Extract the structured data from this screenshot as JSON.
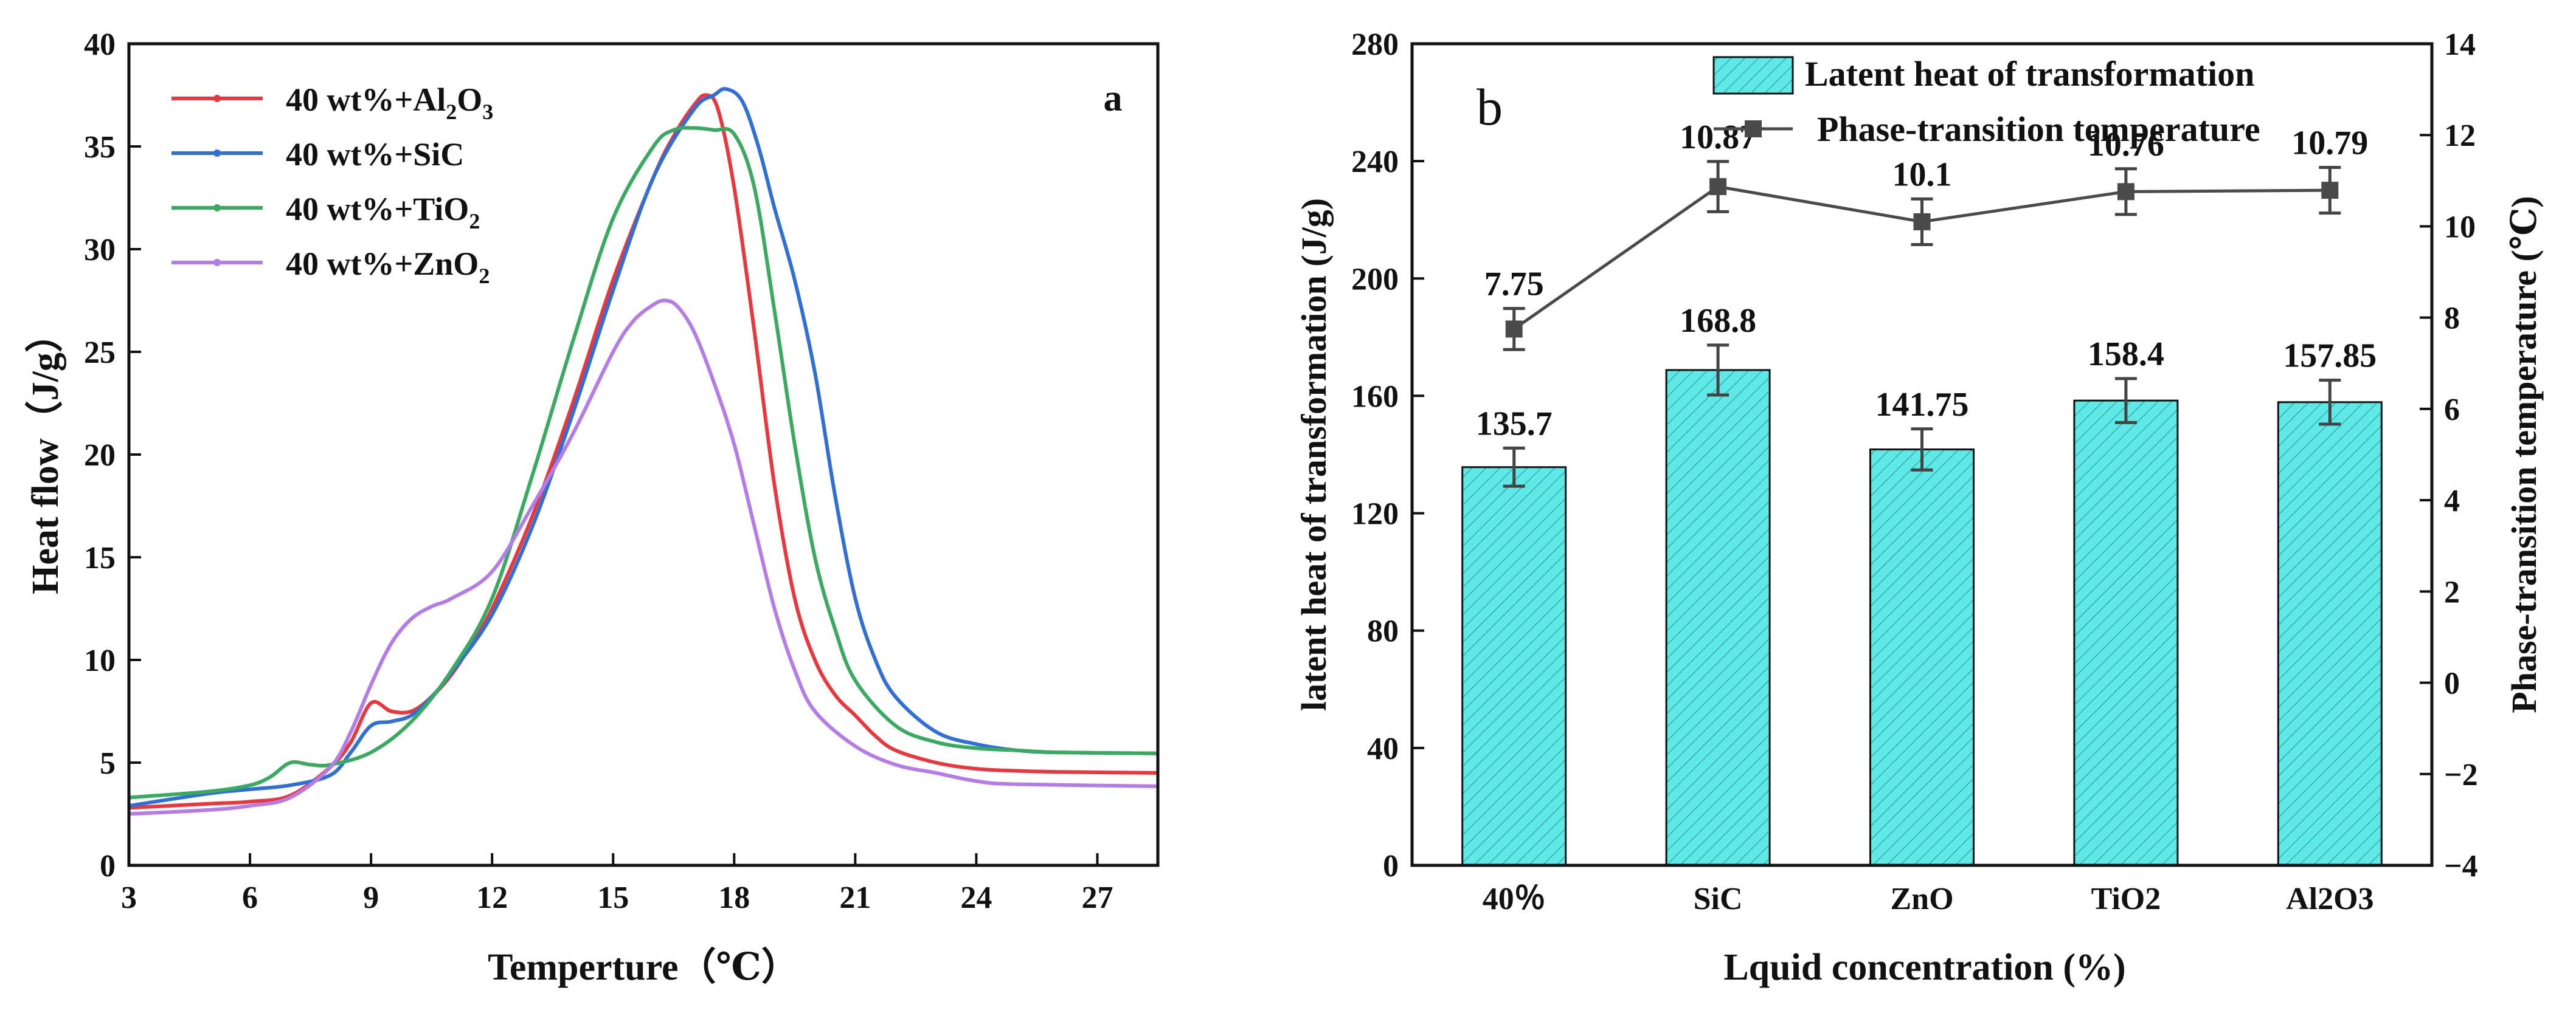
{
  "chart_data": [
    {
      "type": "line",
      "panel_label": "a",
      "xlabel": "Temperture（℃）",
      "ylabel": "Heat flow（J/g）",
      "xlim": [
        3,
        28.5
      ],
      "ylim": [
        0,
        40
      ],
      "xticks": [
        "3",
        "6",
        "9",
        "12",
        "15",
        "18",
        "21",
        "24",
        "27"
      ],
      "yticks": [
        "0",
        "5",
        "10",
        "15",
        "20",
        "25",
        "30",
        "35",
        "40"
      ],
      "legend_position": "top-left",
      "series": [
        {
          "name": "40 wt%+Al₂O₃",
          "name_base": "40 wt%+Al",
          "name_sub": "2",
          "name_mid": "O",
          "name_sub2": "3",
          "color": "#e8383d",
          "x": [
            3,
            5,
            6,
            7,
            8,
            8.5,
            9,
            9.5,
            10,
            10.5,
            11,
            11.5,
            12,
            13,
            14,
            15,
            16,
            16.5,
            17,
            17.3,
            17.6,
            18,
            18.5,
            19,
            19.5,
            20,
            20.5,
            21,
            21.5,
            22,
            23,
            24,
            25,
            26,
            28.5
          ],
          "y": [
            2.8,
            3.0,
            3.1,
            3.4,
            4.8,
            6.0,
            7.9,
            7.5,
            7.5,
            8.2,
            9.3,
            10.8,
            12.5,
            17.0,
            22.5,
            28.5,
            33.5,
            35.5,
            37.0,
            37.5,
            36.8,
            33.0,
            26.0,
            18.5,
            13.0,
            10.0,
            8.3,
            7.3,
            6.3,
            5.6,
            5.0,
            4.7,
            4.6,
            4.55,
            4.5
          ]
        },
        {
          "name": "40 wt%+SiC",
          "name_base": "40 wt%+SiC",
          "name_sub": "",
          "name_mid": "",
          "name_sub2": "",
          "color": "#2f6fd6",
          "x": [
            3,
            5,
            6,
            7,
            8,
            8.5,
            9,
            9.5,
            10,
            10.5,
            11,
            12,
            13,
            14,
            15,
            16,
            17,
            17.5,
            17.8,
            18.2,
            18.6,
            19,
            19.5,
            20,
            20.5,
            21,
            21.5,
            22,
            23,
            24,
            25,
            26,
            28.5
          ],
          "y": [
            2.9,
            3.5,
            3.7,
            3.9,
            4.4,
            5.5,
            6.8,
            7.0,
            7.3,
            8.2,
            9.4,
            12.2,
            16.5,
            22.0,
            28.0,
            33.5,
            36.8,
            37.5,
            37.8,
            37.2,
            35.0,
            32.0,
            28.5,
            24.0,
            18.0,
            13.0,
            10.0,
            8.2,
            6.5,
            5.9,
            5.6,
            5.5,
            5.45
          ]
        },
        {
          "name": "40 wt%+TiO₂",
          "name_base": "40 wt%+TiO",
          "name_sub": "2",
          "name_mid": "",
          "name_sub2": "",
          "color": "#3aaa60",
          "x": [
            3,
            5,
            6,
            6.5,
            7,
            7.5,
            8,
            9,
            10,
            11,
            12,
            13,
            14,
            15,
            16,
            16.5,
            17,
            17.5,
            18,
            18.5,
            19,
            19.5,
            20,
            20.5,
            21,
            22,
            23,
            24,
            25,
            26,
            28.5
          ],
          "y": [
            3.3,
            3.6,
            3.9,
            4.3,
            5.0,
            4.9,
            4.9,
            5.5,
            7.0,
            9.5,
            13.0,
            19.0,
            25.5,
            31.5,
            35.0,
            35.8,
            35.9,
            35.8,
            35.6,
            33.0,
            27.0,
            20.5,
            15.0,
            11.5,
            9.0,
            6.8,
            6.0,
            5.7,
            5.6,
            5.5,
            5.45
          ]
        },
        {
          "name": "40 wt%+ZnO₂",
          "name_base": "40 wt%+ZnO",
          "name_sub": "2",
          "name_mid": "",
          "name_sub2": "",
          "color": "#b57ce8",
          "x": [
            3,
            5,
            6,
            7,
            8,
            8.5,
            9,
            9.5,
            10,
            10.5,
            11,
            12,
            13,
            14,
            15,
            15.5,
            16,
            16.3,
            16.6,
            17,
            17.5,
            18,
            18.5,
            19,
            19.5,
            20,
            21,
            22,
            23,
            24,
            25,
            28.5
          ],
          "y": [
            2.5,
            2.7,
            2.9,
            3.3,
            4.8,
            6.5,
            8.8,
            10.8,
            12.0,
            12.6,
            13.0,
            14.3,
            17.5,
            21.0,
            25.0,
            26.5,
            27.3,
            27.5,
            27.2,
            26.0,
            23.5,
            20.5,
            16.5,
            12.5,
            9.5,
            7.5,
            5.8,
            4.9,
            4.5,
            4.1,
            3.95,
            3.85
          ]
        }
      ]
    },
    {
      "type": "bar",
      "panel_label": "b",
      "xlabel": "Lquid concentration (%)",
      "ylabel": "latent heat of transformation (J/g)",
      "y2label": "Phase-transition temperature (℃)",
      "categories": [
        "40％",
        "SiC",
        "ZnO",
        "TiO2",
        "Al2O3"
      ],
      "ylim": [
        0,
        280
      ],
      "y2lim": [
        -4,
        14
      ],
      "yticks": [
        "0",
        "40",
        "80",
        "120",
        "160",
        "200",
        "240",
        "280"
      ],
      "y2ticks": [
        "−4",
        "−2",
        "0",
        "2",
        "4",
        "6",
        "8",
        "10",
        "12",
        "14"
      ],
      "legend_position": "top-right",
      "series": [
        {
          "name": "Latent heat of transformation",
          "type": "bar",
          "color": "#5ee8e6",
          "values": [
            135.7,
            168.8,
            141.75,
            158.4,
            157.85
          ],
          "value_labels": [
            "135.7",
            "168.8",
            "141.75",
            "158.4",
            "157.85"
          ],
          "errors": [
            6.5,
            8.5,
            7.0,
            7.5,
            7.5
          ]
        },
        {
          "name": "Phase-transition temperature",
          "type": "line",
          "axis": "right",
          "color": "#4a4a4a",
          "values": [
            7.75,
            10.87,
            10.1,
            10.76,
            10.79
          ],
          "value_labels": [
            "7.75",
            "10.87",
            "10.1",
            "10.76",
            "10.79"
          ],
          "errors": [
            0.45,
            0.55,
            0.5,
            0.5,
            0.5
          ]
        }
      ]
    }
  ]
}
